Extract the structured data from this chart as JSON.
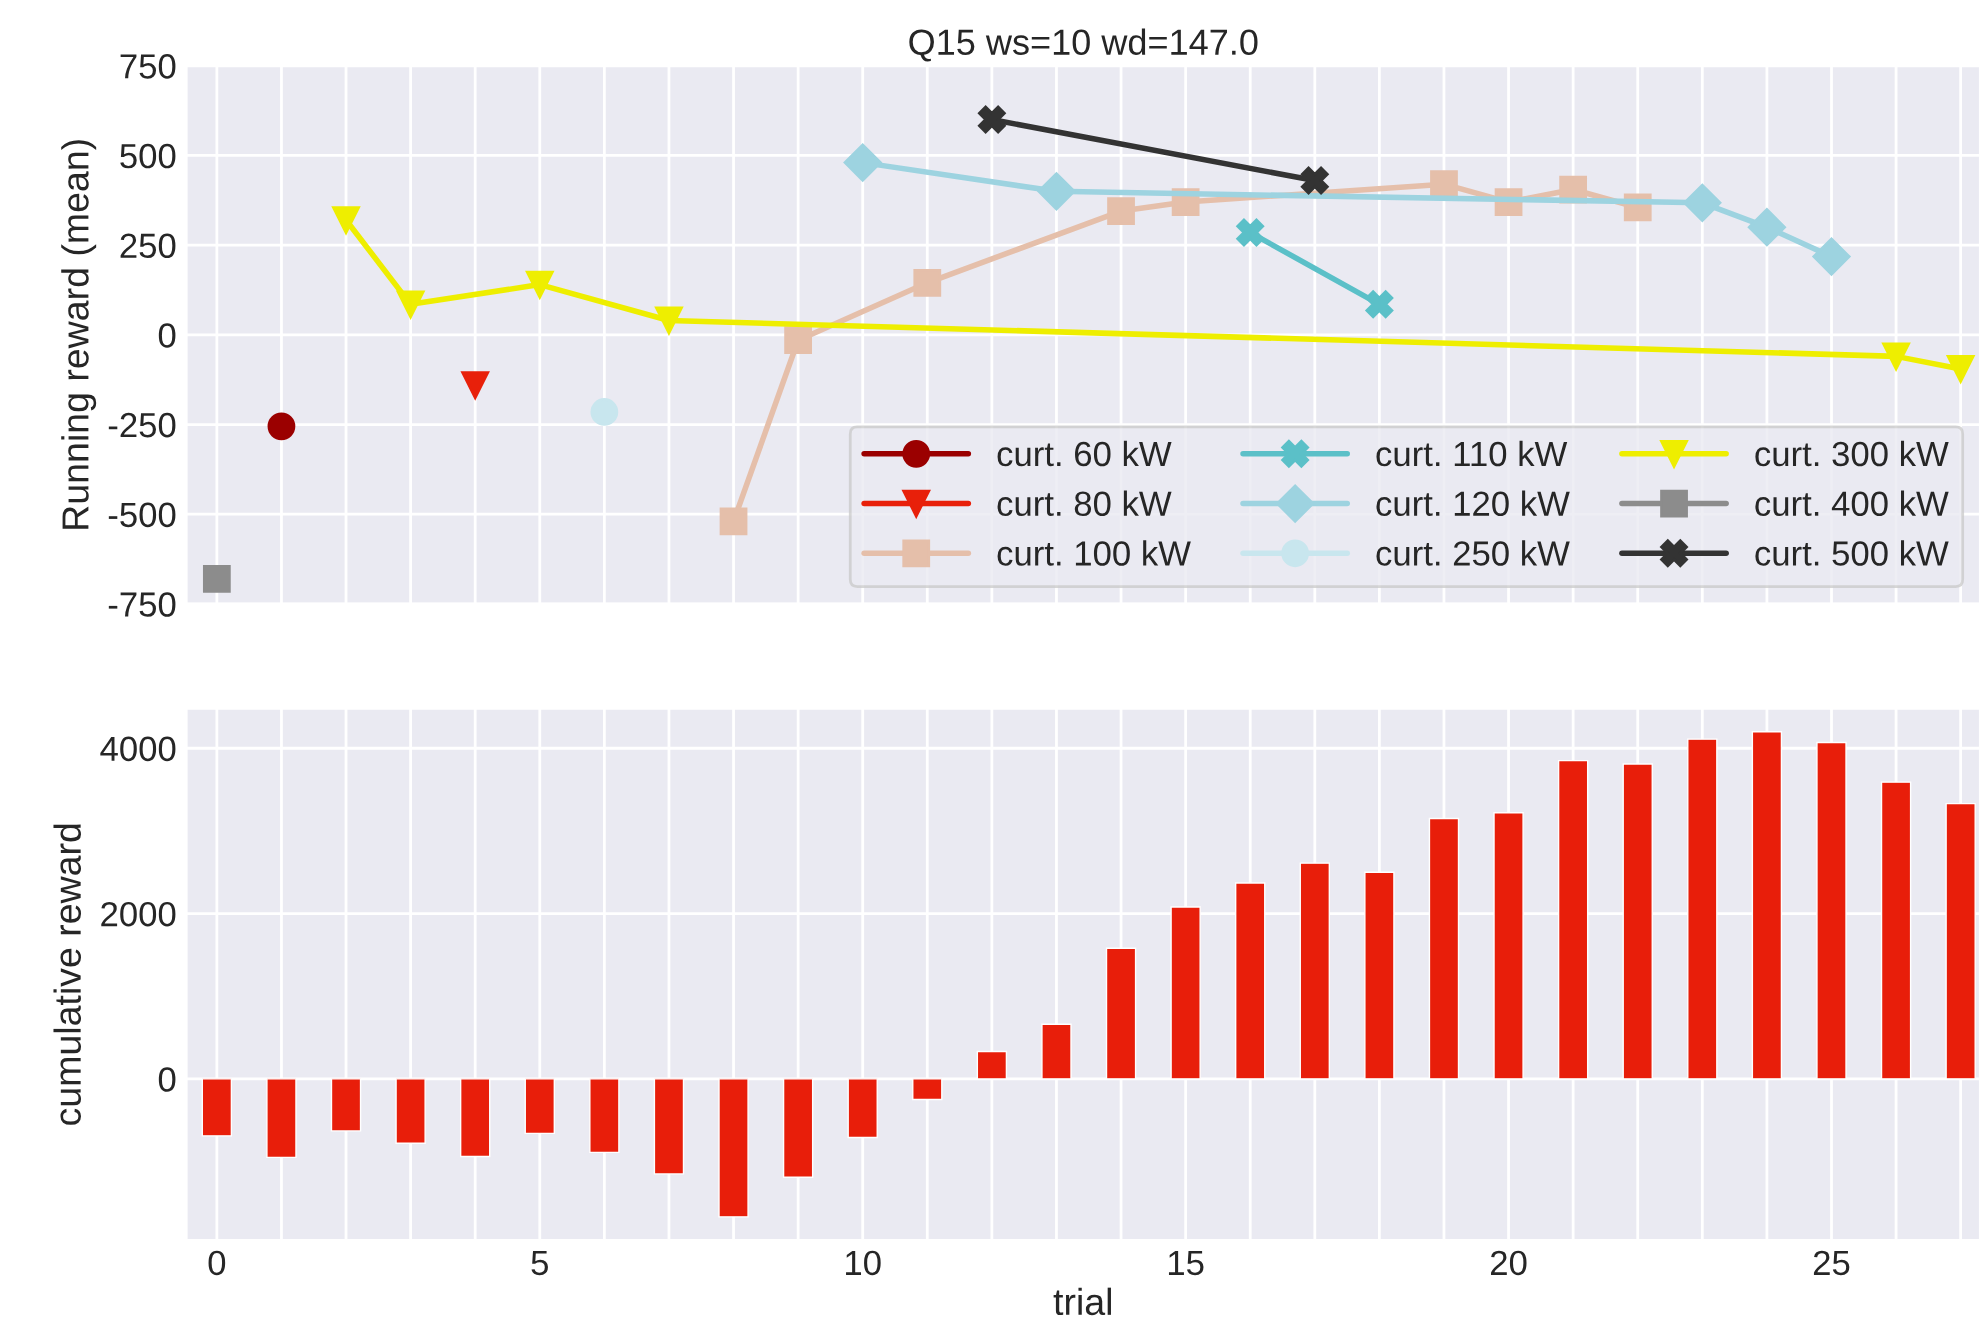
{
  "chart_data": [
    {
      "type": "line",
      "title": "Q15 ws=10 wd=147.0",
      "ylabel": "Running reward (mean)",
      "xlim": [
        -0.47,
        27.3
      ],
      "xticks": [
        {
          "value": 0,
          "label": null
        },
        {
          "value": 1,
          "label": null
        },
        {
          "value": 2,
          "label": null
        },
        {
          "value": 3,
          "label": null
        },
        {
          "value": 4,
          "label": null
        },
        {
          "value": 5,
          "label": null
        },
        {
          "value": 6,
          "label": null
        },
        {
          "value": 7,
          "label": null
        },
        {
          "value": 8,
          "label": null
        },
        {
          "value": 9,
          "label": null
        },
        {
          "value": 10,
          "label": null
        },
        {
          "value": 11,
          "label": null
        },
        {
          "value": 12,
          "label": null
        },
        {
          "value": 13,
          "label": null
        },
        {
          "value": 14,
          "label": null
        },
        {
          "value": 15,
          "label": null
        },
        {
          "value": 16,
          "label": null
        },
        {
          "value": 17,
          "label": null
        },
        {
          "value": 18,
          "label": null
        },
        {
          "value": 19,
          "label": null
        },
        {
          "value": 20,
          "label": null
        },
        {
          "value": 21,
          "label": null
        },
        {
          "value": 22,
          "label": null
        },
        {
          "value": 23,
          "label": null
        },
        {
          "value": 24,
          "label": null
        },
        {
          "value": 25,
          "label": null
        },
        {
          "value": 26,
          "label": null
        },
        {
          "value": 27,
          "label": null
        }
      ],
      "ylim": [
        -750,
        750
      ],
      "yticks": [
        -750,
        -500,
        -250,
        0,
        250,
        500,
        750
      ],
      "tick_labels": "y",
      "grid": true,
      "legend": "bottom right",
      "line_style": "solid",
      "series": [
        {
          "name": "curt. 60 kW",
          "color": "#9b0000",
          "marker": "circle",
          "x": [
            1
          ],
          "values": [
            -255
          ]
        },
        {
          "name": "curt. 80 kW",
          "color": "#e8200a",
          "marker": "triangle",
          "x": [
            4
          ],
          "values": [
            -140
          ]
        },
        {
          "name": "curt. 100 kW",
          "color": "#e5bfaa",
          "marker": "square",
          "x": [
            8,
            9,
            11,
            14,
            15,
            19,
            20,
            21,
            22
          ],
          "values": [
            -520,
            -15,
            145,
            345,
            370,
            420,
            370,
            405,
            355
          ]
        },
        {
          "name": "curt. 110 kW",
          "color": "#5bc0c8",
          "marker": "cross",
          "x": [
            16,
            18
          ],
          "values": [
            285,
            85
          ]
        },
        {
          "name": "curt. 120 kW",
          "color": "#9dd3e0",
          "marker": "diamond",
          "x": [
            10,
            13,
            23,
            24,
            25
          ],
          "values": [
            480,
            400,
            368,
            300,
            218
          ]
        },
        {
          "name": "curt. 250 kW",
          "color": "#c8e6ee",
          "marker": "circle",
          "x": [
            6
          ],
          "values": [
            -215
          ]
        },
        {
          "name": "curt. 300 kW",
          "color": "#eeee00",
          "marker": "triangle",
          "x": [
            2,
            3,
            5,
            7,
            26,
            27
          ],
          "values": [
            320,
            85,
            140,
            40,
            -60,
            -95
          ]
        },
        {
          "name": "curt. 400 kW",
          "color": "#8c8c8c",
          "marker": "square",
          "x": [
            0
          ],
          "values": [
            -680
          ]
        },
        {
          "name": "curt. 500 kW",
          "color": "#333333",
          "marker": "cross",
          "x": [
            12,
            17
          ],
          "values": [
            600,
            430
          ]
        }
      ]
    },
    {
      "type": "bar",
      "xlabel": "trial",
      "ylabel": "cumulative reward",
      "xlim": [
        -0.47,
        27.3
      ],
      "xticks": [
        0,
        {
          "value": 1,
          "label": null
        },
        {
          "value": 2,
          "label": null
        },
        {
          "value": 3,
          "label": null
        },
        {
          "value": 4,
          "label": null
        },
        5,
        {
          "value": 6,
          "label": null
        },
        {
          "value": 7,
          "label": null
        },
        {
          "value": 8,
          "label": null
        },
        {
          "value": 9,
          "label": null
        },
        10,
        {
          "value": 11,
          "label": null
        },
        {
          "value": 12,
          "label": null
        },
        {
          "value": 13,
          "label": null
        },
        {
          "value": 14,
          "label": null
        },
        15,
        {
          "value": 16,
          "label": null
        },
        {
          "value": 17,
          "label": null
        },
        {
          "value": 18,
          "label": null
        },
        {
          "value": 19,
          "label": null
        },
        20,
        {
          "value": 21,
          "label": null
        },
        {
          "value": 22,
          "label": null
        },
        {
          "value": 23,
          "label": null
        },
        {
          "value": 24,
          "label": null
        },
        25,
        {
          "value": 26,
          "label": null
        },
        {
          "value": 27,
          "label": null
        }
      ],
      "ylim": [
        -1950,
        4480
      ],
      "yticks": [
        0,
        2000,
        4000
      ],
      "grid": true,
      "x": [
        0,
        1,
        2,
        3,
        4,
        5,
        6,
        7,
        8,
        9,
        10,
        11,
        12,
        13,
        14,
        15,
        16,
        17,
        18,
        19,
        20,
        21,
        22,
        23,
        24,
        25,
        26,
        27
      ],
      "series": [
        {
          "color": "#e81e0a",
          "values": [
            -690,
            -950,
            -630,
            -780,
            -940,
            -660,
            -890,
            -1150,
            -1670,
            -1190,
            -710,
            -250,
            330,
            660,
            1580,
            2080,
            2370,
            2610,
            2500,
            3150,
            3220,
            3850,
            3810,
            4110,
            4200,
            4070,
            3590,
            3330
          ]
        }
      ]
    }
  ]
}
